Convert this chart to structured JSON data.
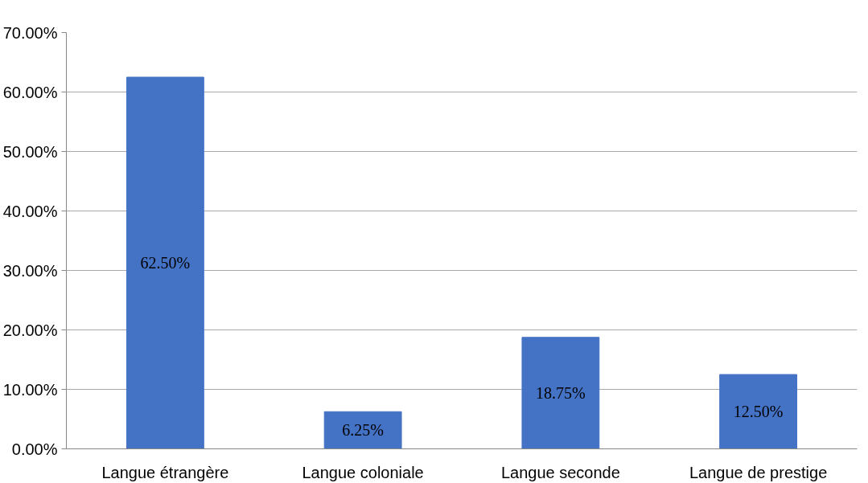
{
  "chart_data": {
    "type": "bar",
    "categories": [
      "Langue étrangère",
      "Langue coloniale",
      "Langue seconde",
      "Langue de prestige"
    ],
    "values": [
      62.5,
      6.25,
      18.75,
      12.5
    ],
    "value_labels": [
      "62.50%",
      "6.25%",
      "18.75%",
      "12.50%"
    ],
    "color": "#4472c4",
    "ylim": [
      0,
      70
    ],
    "yticks": [
      {
        "value": 0,
        "label": "0.00%"
      },
      {
        "value": 10,
        "label": "10.00%"
      },
      {
        "value": 20,
        "label": "20.00%"
      },
      {
        "value": 30,
        "label": "30.00%"
      },
      {
        "value": 40,
        "label": "40.00%"
      },
      {
        "value": 50,
        "label": "50.00%"
      },
      {
        "value": 60,
        "label": "60.00%"
      },
      {
        "value": 70,
        "label": "70.00%"
      }
    ],
    "grid": "y"
  }
}
